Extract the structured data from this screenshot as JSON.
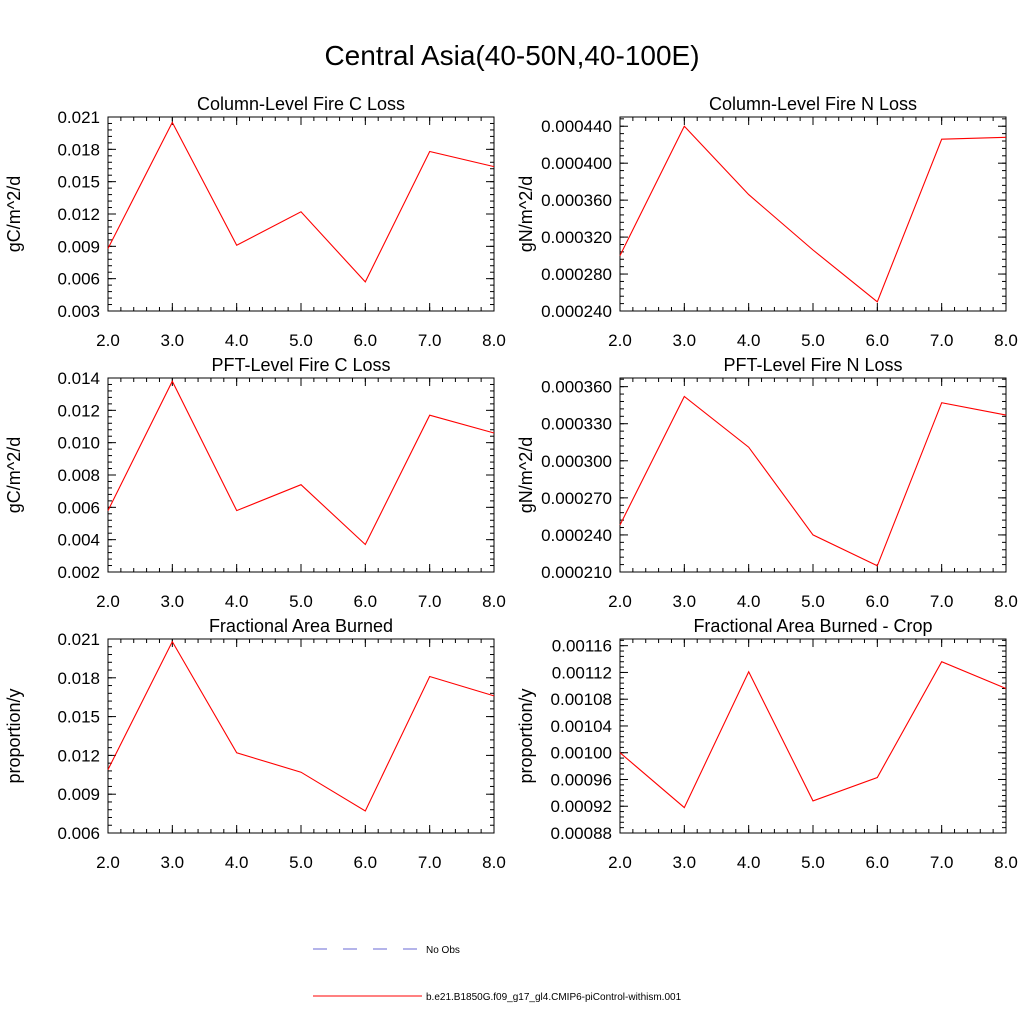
{
  "figure": {
    "title": "Central Asia(40-50N,40-100E)",
    "legend": [
      {
        "label": "No Obs",
        "color": "#6a6ad6",
        "dash": true
      },
      {
        "label": "b.e21.B1850G.f09_g17_gl4.CMIP6-piControl-withism.001",
        "color": "#ff0000",
        "dash": false
      }
    ]
  },
  "chart_data": [
    {
      "type": "line",
      "title": "Column-Level Fire C Loss",
      "ylabel": "gC/m^2/d",
      "x": [
        2,
        3,
        4,
        5,
        6,
        7,
        8
      ],
      "xticks": [
        "2.0",
        "3.0",
        "4.0",
        "5.0",
        "6.0",
        "7.0",
        "8.0"
      ],
      "xlim": [
        2,
        8
      ],
      "ylim": [
        0.003,
        0.021
      ],
      "yticks": [
        "0.003",
        "0.006",
        "0.009",
        "0.012",
        "0.015",
        "0.018",
        "0.021"
      ],
      "ytick_values": [
        0.003,
        0.006,
        0.009,
        0.012,
        0.015,
        0.018,
        0.021
      ],
      "series": [
        {
          "color": "#ff0000",
          "values": [
            0.0088,
            0.0205,
            0.0091,
            0.0122,
            0.0057,
            0.0178,
            0.0164
          ]
        }
      ]
    },
    {
      "type": "line",
      "title": "Column-Level Fire N Loss",
      "ylabel": "gN/m^2/d",
      "x": [
        2,
        3,
        4,
        5,
        6,
        7,
        8
      ],
      "xticks": [
        "2.0",
        "3.0",
        "4.0",
        "5.0",
        "6.0",
        "7.0",
        "8.0"
      ],
      "xlim": [
        2,
        8
      ],
      "ylim": [
        0.00024,
        0.00045
      ],
      "yticks": [
        "0.000240",
        "0.000280",
        "0.000320",
        "0.000360",
        "0.000400",
        "0.000440"
      ],
      "ytick_values": [
        0.00024,
        0.00028,
        0.00032,
        0.00036,
        0.0004,
        0.00044
      ],
      "series": [
        {
          "color": "#ff0000",
          "values": [
            0.0003,
            0.00044,
            0.000366,
            0.000306,
            0.00025,
            0.000426,
            0.000428
          ]
        }
      ]
    },
    {
      "type": "line",
      "title": "PFT-Level Fire C Loss",
      "ylabel": "gC/m^2/d",
      "x": [
        2,
        3,
        4,
        5,
        6,
        7,
        8
      ],
      "xticks": [
        "2.0",
        "3.0",
        "4.0",
        "5.0",
        "6.0",
        "7.0",
        "8.0"
      ],
      "xlim": [
        2,
        8
      ],
      "ylim": [
        0.002,
        0.014
      ],
      "yticks": [
        "0.002",
        "0.004",
        "0.006",
        "0.008",
        "0.010",
        "0.012",
        "0.014"
      ],
      "ytick_values": [
        0.002,
        0.004,
        0.006,
        0.008,
        0.01,
        0.012,
        0.014
      ],
      "series": [
        {
          "color": "#ff0000",
          "values": [
            0.0058,
            0.0138,
            0.0058,
            0.0074,
            0.0037,
            0.0117,
            0.0106
          ]
        }
      ]
    },
    {
      "type": "line",
      "title": "PFT-Level Fire N Loss",
      "ylabel": "gN/m^2/d",
      "x": [
        2,
        3,
        4,
        5,
        6,
        7,
        8
      ],
      "xticks": [
        "2.0",
        "3.0",
        "4.0",
        "5.0",
        "6.0",
        "7.0",
        "8.0"
      ],
      "xlim": [
        2,
        8
      ],
      "ylim": [
        0.00021,
        0.000367
      ],
      "yticks": [
        "0.000210",
        "0.000240",
        "0.000270",
        "0.000300",
        "0.000330",
        "0.000360"
      ],
      "ytick_values": [
        0.00021,
        0.00024,
        0.00027,
        0.0003,
        0.00033,
        0.00036
      ],
      "series": [
        {
          "color": "#ff0000",
          "values": [
            0.000248,
            0.000352,
            0.000311,
            0.00024,
            0.000215,
            0.000347,
            0.000337
          ]
        }
      ]
    },
    {
      "type": "line",
      "title": "Fractional Area Burned",
      "ylabel": "proportion/y",
      "x": [
        2,
        3,
        4,
        5,
        6,
        7,
        8
      ],
      "xticks": [
        "2.0",
        "3.0",
        "4.0",
        "5.0",
        "6.0",
        "7.0",
        "8.0"
      ],
      "xlim": [
        2,
        8
      ],
      "ylim": [
        0.006,
        0.021
      ],
      "yticks": [
        "0.006",
        "0.009",
        "0.012",
        "0.015",
        "0.018",
        "0.021"
      ],
      "ytick_values": [
        0.006,
        0.009,
        0.012,
        0.015,
        0.018,
        0.021
      ],
      "series": [
        {
          "color": "#ff0000",
          "values": [
            0.0109,
            0.0208,
            0.0122,
            0.0107,
            0.0077,
            0.0181,
            0.0166
          ]
        }
      ]
    },
    {
      "type": "line",
      "title": "Fractional Area Burned - Crop",
      "ylabel": "proportion/y",
      "x": [
        2,
        3,
        4,
        5,
        6,
        7,
        8
      ],
      "xticks": [
        "2.0",
        "3.0",
        "4.0",
        "5.0",
        "6.0",
        "7.0",
        "8.0"
      ],
      "xlim": [
        2,
        8
      ],
      "ylim": [
        0.00088,
        0.00117
      ],
      "yticks": [
        "0.00088",
        "0.00092",
        "0.00096",
        "0.00100",
        "0.00104",
        "0.00108",
        "0.00112",
        "0.00116"
      ],
      "ytick_values": [
        0.00088,
        0.00092,
        0.00096,
        0.001,
        0.00104,
        0.00108,
        0.00112,
        0.00116
      ],
      "series": [
        {
          "color": "#ff0000",
          "values": [
            0.001,
            0.000918,
            0.001121,
            0.000928,
            0.000963,
            0.001136,
            0.001096
          ]
        }
      ]
    }
  ]
}
